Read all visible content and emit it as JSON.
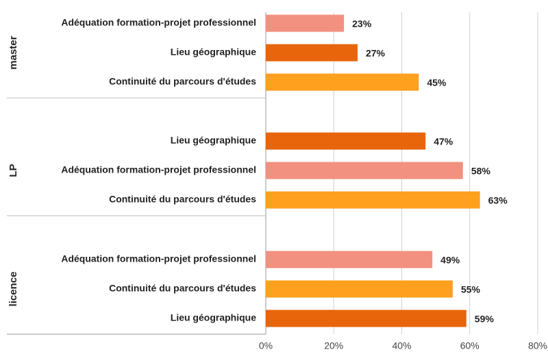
{
  "chart_data": {
    "type": "bar",
    "orientation": "horizontal",
    "groups": [
      {
        "name": "master",
        "categories": [
          "Adéquation formation-projet professionnel",
          "Lieu géographique",
          "Continuité du parcours d'études"
        ],
        "values": [
          23,
          27,
          45
        ],
        "value_labels": [
          "23%",
          "27%",
          "45%"
        ],
        "colors": [
          "#f2917f",
          "#e8650c",
          "#ffa01f"
        ]
      },
      {
        "name": "LP",
        "categories": [
          "Lieu géographique",
          "Adéquation formation-projet professionnel",
          "Continuité du parcours d'études"
        ],
        "values": [
          47,
          58,
          63
        ],
        "value_labels": [
          "47%",
          "58%",
          "63%"
        ],
        "colors": [
          "#e8650c",
          "#f2917f",
          "#ffa01f"
        ]
      },
      {
        "name": "licence",
        "categories": [
          "Adéquation formation-projet professionnel",
          "Continuité du parcours d'études",
          "Lieu géographique"
        ],
        "values": [
          49,
          55,
          59
        ],
        "value_labels": [
          "49%",
          "55%",
          "59%"
        ],
        "colors": [
          "#f2917f",
          "#ffa01f",
          "#e8650c"
        ]
      }
    ],
    "xlim": [
      0,
      80
    ],
    "xticks": [
      {
        "value": 0,
        "label": "0%"
      },
      {
        "value": 20,
        "label": "20%"
      },
      {
        "value": 40,
        "label": "40%"
      },
      {
        "value": 60,
        "label": "60%"
      },
      {
        "value": 80,
        "label": "80%"
      }
    ],
    "grid": true
  }
}
